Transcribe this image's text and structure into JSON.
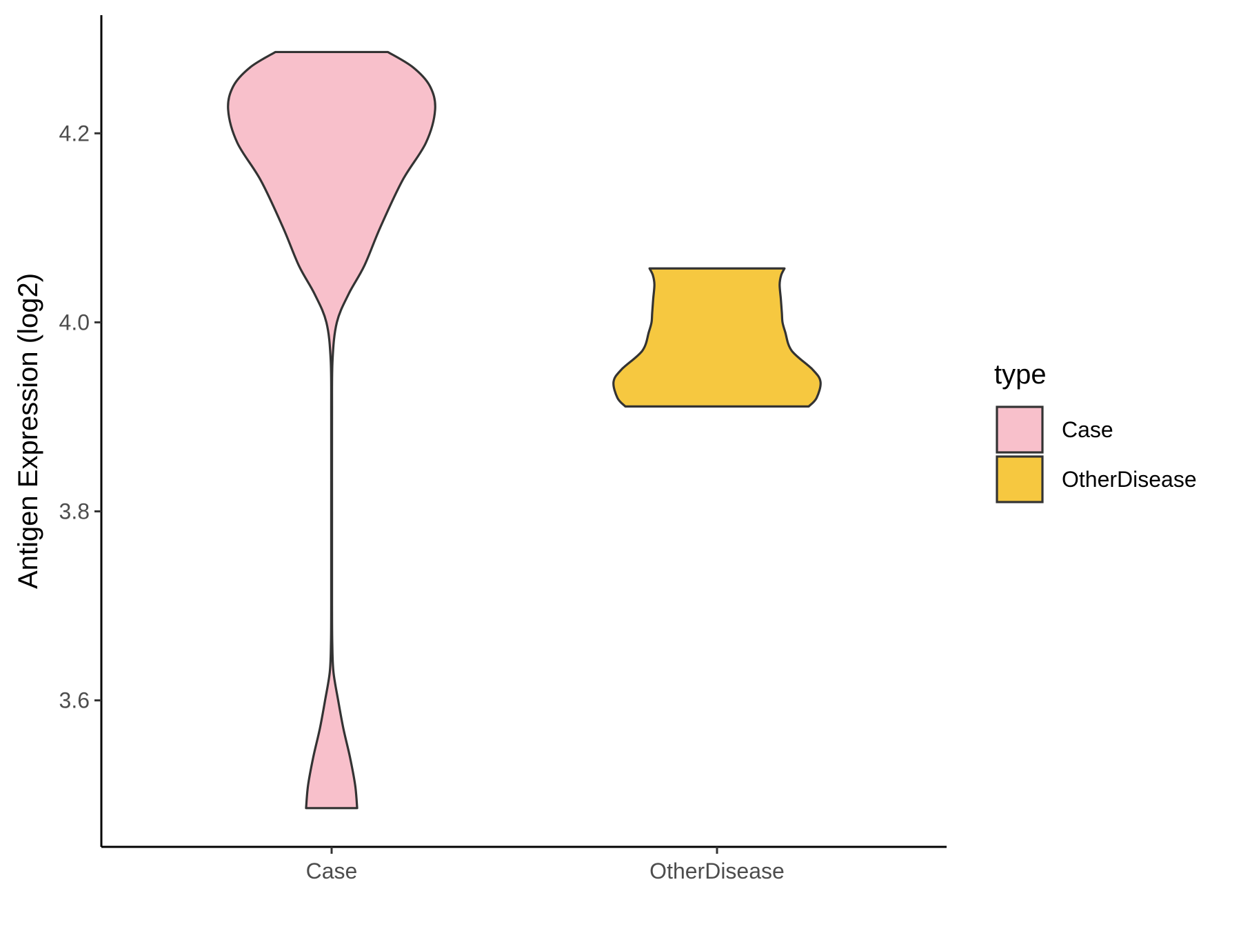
{
  "chart_data": {
    "type": "violin",
    "title": "",
    "xlabel": "",
    "ylabel": "Antigen Expression (log2)",
    "categories": [
      "Case",
      "OtherDisease"
    ],
    "ylim": [
      3.445,
      4.325
    ],
    "yticks": [
      3.6,
      3.8,
      4.0,
      4.2
    ],
    "ytick_labels": [
      "3.6",
      "3.8",
      "4.0",
      "4.2"
    ],
    "grid": false,
    "legend": {
      "title": "type",
      "position": "right",
      "entries": [
        {
          "label": "Case",
          "color": "#f8c0cb"
        },
        {
          "label": "OtherDisease",
          "color": "#f6c840"
        }
      ]
    },
    "series": [
      {
        "name": "Case",
        "color": "#f8c0cb",
        "ymin": 3.486,
        "ymax": 4.286,
        "density_profile": [
          [
            3.486,
            0.195
          ],
          [
            3.51,
            0.18
          ],
          [
            3.54,
            0.14
          ],
          [
            3.57,
            0.09
          ],
          [
            3.6,
            0.05
          ],
          [
            3.63,
            0.014
          ],
          [
            3.66,
            0.005
          ],
          [
            3.7,
            0.003
          ],
          [
            3.8,
            0.003
          ],
          [
            3.9,
            0.003
          ],
          [
            3.96,
            0.007
          ],
          [
            4.0,
            0.04
          ],
          [
            4.03,
            0.13
          ],
          [
            4.06,
            0.25
          ],
          [
            4.1,
            0.37
          ],
          [
            4.15,
            0.54
          ],
          [
            4.19,
            0.72
          ],
          [
            4.225,
            0.79
          ],
          [
            4.25,
            0.75
          ],
          [
            4.27,
            0.62
          ],
          [
            4.286,
            0.43
          ]
        ]
      },
      {
        "name": "OtherDisease",
        "color": "#f6c840",
        "ymin": 3.911,
        "ymax": 4.057,
        "density_profile": [
          [
            3.911,
            0.7
          ],
          [
            3.92,
            0.76
          ],
          [
            3.937,
            0.79
          ],
          [
            3.95,
            0.73
          ],
          [
            3.97,
            0.57
          ],
          [
            3.99,
            0.52
          ],
          [
            4.0,
            0.5
          ],
          [
            4.01,
            0.495
          ],
          [
            4.025,
            0.487
          ],
          [
            4.04,
            0.478
          ],
          [
            4.05,
            0.49
          ],
          [
            4.057,
            0.515
          ]
        ]
      }
    ]
  },
  "colors": {
    "outline": "#333333",
    "axis": "#000000",
    "tick_text": "#4d4d4d",
    "background": "#ffffff"
  }
}
